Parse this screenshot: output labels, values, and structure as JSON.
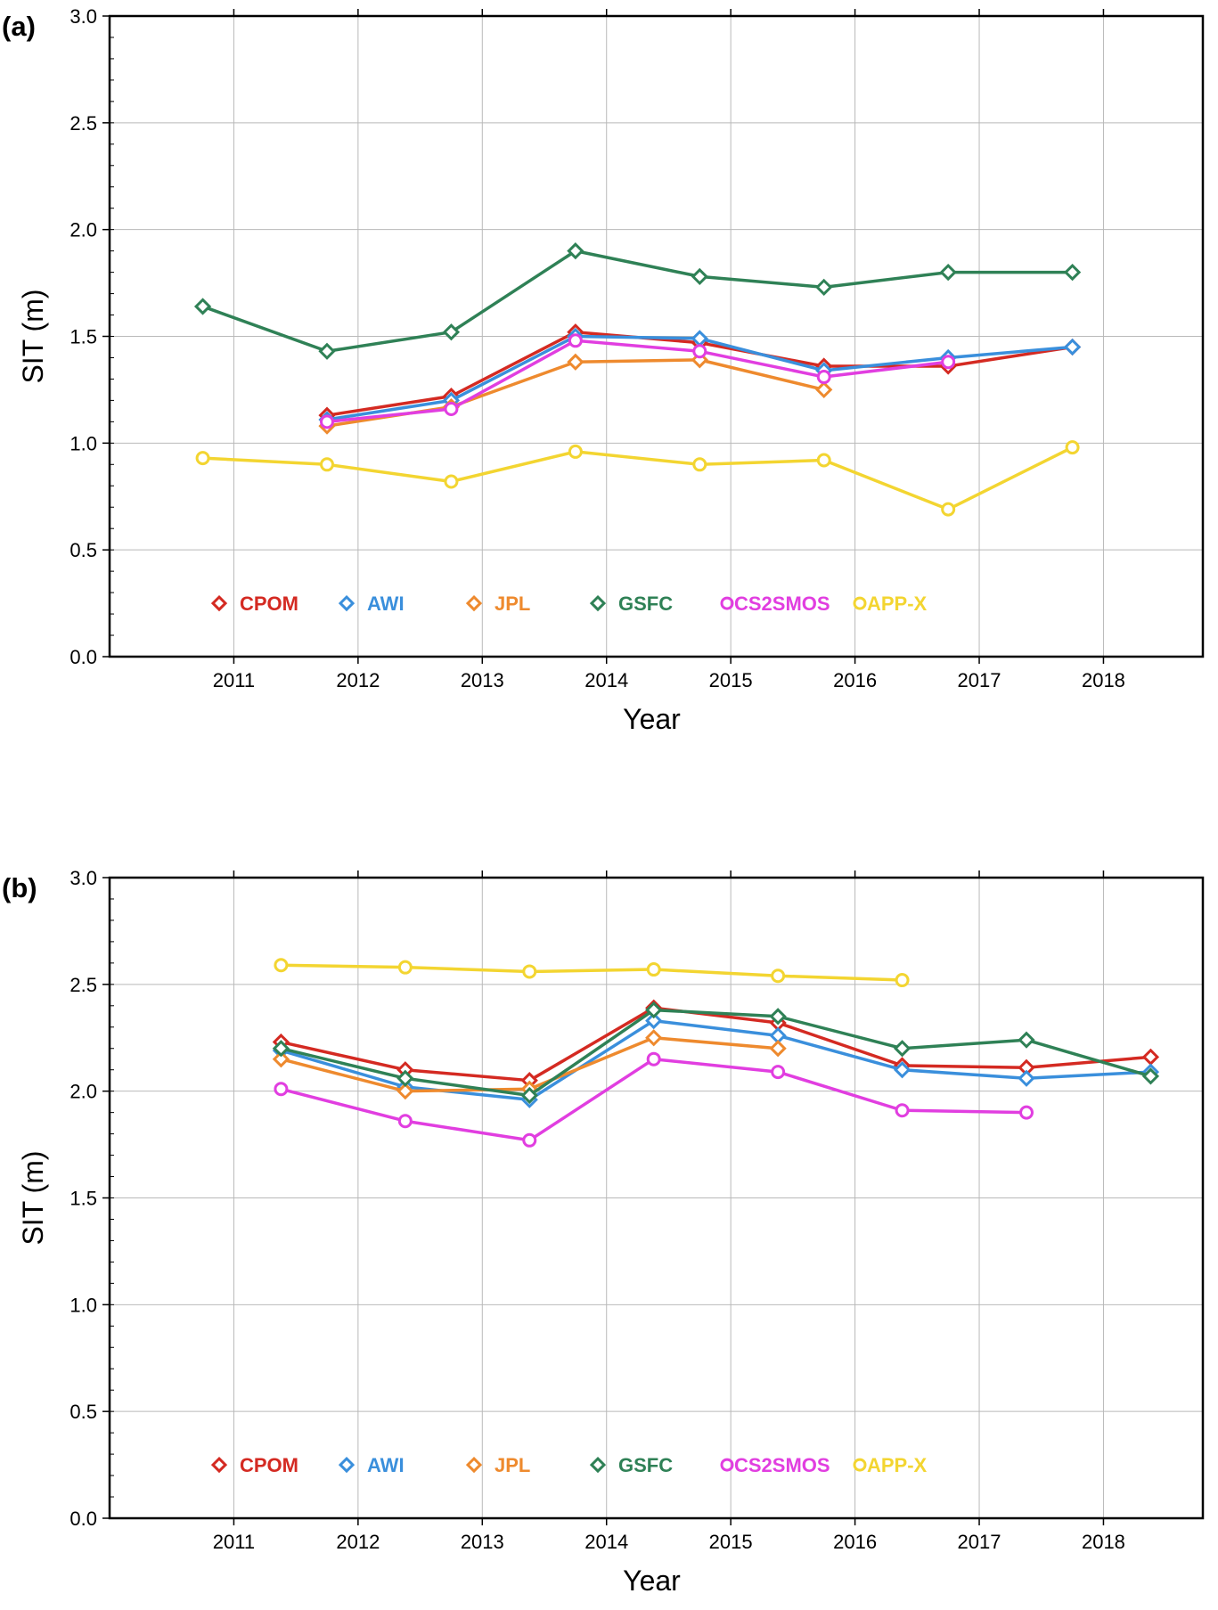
{
  "chart_data": [
    {
      "panel_label": "(a)",
      "type": "line",
      "xlabel": "Year",
      "ylabel": "SIT (m)",
      "xlim": [
        2010.0,
        2018.8
      ],
      "ylim": [
        0.0,
        3.0
      ],
      "x_ticks": [
        "2011",
        "2012",
        "2013",
        "2014",
        "2015",
        "2016",
        "2017",
        "2018"
      ],
      "y_ticks": [
        "0.0",
        "0.5",
        "1.0",
        "1.5",
        "2.0",
        "2.5",
        "3.0"
      ],
      "grid": true,
      "legend_position": "bottom-left",
      "series": [
        {
          "name": "CPOM",
          "color": "#d42a22",
          "marker": "diamond",
          "x": [
            2011.75,
            2012.75,
            2013.75,
            2014.75,
            2015.75,
            2016.75,
            2017.75
          ],
          "y": [
            1.13,
            1.22,
            1.52,
            1.47,
            1.36,
            1.36,
            1.45
          ]
        },
        {
          "name": "AWI",
          "color": "#3a8fdc",
          "marker": "diamond",
          "x": [
            2011.75,
            2012.75,
            2013.75,
            2014.75,
            2015.75,
            2016.75,
            2017.75
          ],
          "y": [
            1.11,
            1.2,
            1.5,
            1.49,
            1.34,
            1.4,
            1.45
          ]
        },
        {
          "name": "JPL",
          "color": "#ee8a2e",
          "marker": "diamond",
          "x": [
            2011.75,
            2012.75,
            2013.75,
            2014.75,
            2015.75
          ],
          "y": [
            1.08,
            1.17,
            1.38,
            1.39,
            1.25
          ]
        },
        {
          "name": "GSFC",
          "color": "#2f8156",
          "marker": "diamond",
          "x": [
            2010.75,
            2011.75,
            2012.75,
            2013.75,
            2014.75,
            2015.75,
            2016.75,
            2017.75
          ],
          "y": [
            1.64,
            1.43,
            1.52,
            1.9,
            1.78,
            1.73,
            1.8,
            1.8
          ]
        },
        {
          "name": "CS2SMOS",
          "color": "#e13ee0",
          "marker": "circle",
          "x": [
            2011.75,
            2012.75,
            2013.75,
            2014.75,
            2015.75,
            2016.75
          ],
          "y": [
            1.1,
            1.16,
            1.48,
            1.43,
            1.31,
            1.38
          ]
        },
        {
          "name": "APP-X",
          "color": "#f3d531",
          "marker": "circle",
          "x": [
            2010.75,
            2011.75,
            2012.75,
            2013.75,
            2014.75,
            2015.75,
            2016.75,
            2017.75
          ],
          "y": [
            0.93,
            0.9,
            0.82,
            0.96,
            0.9,
            0.92,
            0.69,
            0.98
          ]
        }
      ]
    },
    {
      "panel_label": "(b)",
      "type": "line",
      "xlabel": "Year",
      "ylabel": "SIT (m)",
      "xlim": [
        2010.0,
        2018.8
      ],
      "ylim": [
        0.0,
        3.0
      ],
      "x_ticks": [
        "2011",
        "2012",
        "2013",
        "2014",
        "2015",
        "2016",
        "2017",
        "2018"
      ],
      "y_ticks": [
        "0.0",
        "0.5",
        "1.0",
        "1.5",
        "2.0",
        "2.5",
        "3.0"
      ],
      "grid": true,
      "legend_position": "bottom-left",
      "series": [
        {
          "name": "CPOM",
          "color": "#d42a22",
          "marker": "diamond",
          "x": [
            2011.38,
            2012.38,
            2013.38,
            2014.38,
            2015.38,
            2016.38,
            2017.38,
            2018.38
          ],
          "y": [
            2.23,
            2.1,
            2.05,
            2.39,
            2.32,
            2.12,
            2.11,
            2.16
          ]
        },
        {
          "name": "AWI",
          "color": "#3a8fdc",
          "marker": "diamond",
          "x": [
            2011.38,
            2012.38,
            2013.38,
            2014.38,
            2015.38,
            2016.38,
            2017.38,
            2018.38
          ],
          "y": [
            2.19,
            2.02,
            1.96,
            2.33,
            2.26,
            2.1,
            2.06,
            2.09
          ]
        },
        {
          "name": "JPL",
          "color": "#ee8a2e",
          "marker": "diamond",
          "x": [
            2011.38,
            2012.38,
            2013.38,
            2014.38,
            2015.38
          ],
          "y": [
            2.15,
            2.0,
            2.01,
            2.25,
            2.2
          ]
        },
        {
          "name": "GSFC",
          "color": "#2f8156",
          "marker": "diamond",
          "x": [
            2011.38,
            2012.38,
            2013.38,
            2014.38,
            2015.38,
            2016.38,
            2017.38,
            2018.38
          ],
          "y": [
            2.2,
            2.06,
            1.98,
            2.38,
            2.35,
            2.2,
            2.24,
            2.07
          ]
        },
        {
          "name": "CS2SMOS",
          "color": "#e13ee0",
          "marker": "circle",
          "x": [
            2011.38,
            2012.38,
            2013.38,
            2014.38,
            2015.38,
            2016.38,
            2017.38
          ],
          "y": [
            2.01,
            1.86,
            1.77,
            2.15,
            2.09,
            1.91,
            1.9
          ]
        },
        {
          "name": "APP-X",
          "color": "#f3d531",
          "marker": "circle",
          "x": [
            2011.38,
            2012.38,
            2013.38,
            2014.38,
            2015.38,
            2016.38
          ],
          "y": [
            2.59,
            2.58,
            2.56,
            2.57,
            2.54,
            2.52
          ]
        }
      ]
    }
  ]
}
